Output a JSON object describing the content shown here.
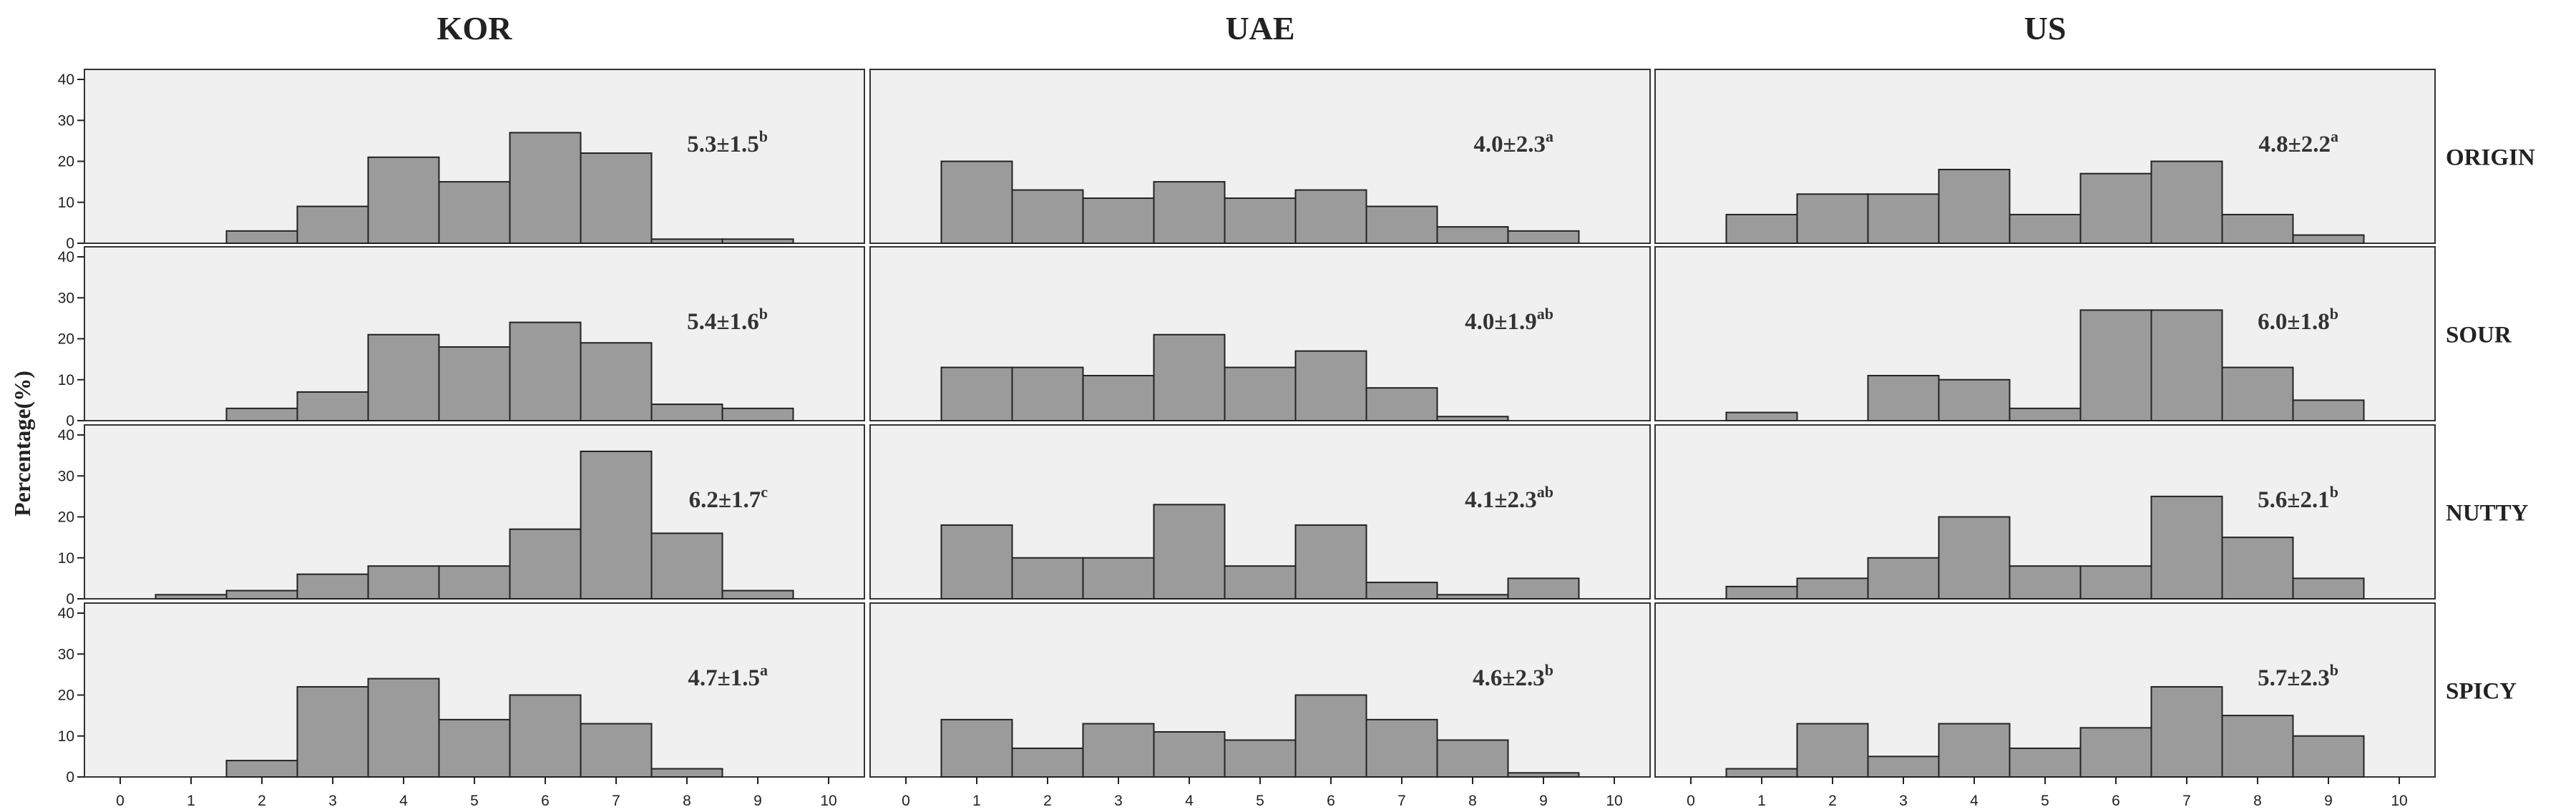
{
  "colors": {
    "bar_fill": "#9b9b9b",
    "bar_stroke": "#222222",
    "panel_bg": "#f0f0f0"
  },
  "chart_data": {
    "type": "bar",
    "subtype": "histogram-grid",
    "ylabel": "Percentage(%)",
    "columns": [
      "KOR",
      "UAE",
      "US"
    ],
    "rows": [
      "ORIGIN",
      "SOUR",
      "NUTTY",
      "SPICY"
    ],
    "ylim": [
      0,
      40
    ],
    "yticks": [
      0,
      10,
      20,
      30,
      40
    ],
    "xlim": [
      0,
      10
    ],
    "xticks": [
      0,
      1,
      2,
      3,
      4,
      5,
      6,
      7,
      8,
      9,
      10
    ],
    "bin_centers": [
      1,
      2,
      3,
      4,
      5,
      6,
      7,
      8,
      9
    ],
    "grid": false,
    "panels": [
      {
        "column": "KOR",
        "row": "ORIGIN",
        "mean_sd": "5.3±1.5",
        "letter": "b",
        "values": [
          0,
          3,
          9,
          21,
          15,
          27,
          22,
          1,
          1
        ]
      },
      {
        "column": "UAE",
        "row": "ORIGIN",
        "mean_sd": "4.0±2.3",
        "letter": "a",
        "values": [
          20,
          13,
          11,
          15,
          11,
          13,
          9,
          4,
          3
        ]
      },
      {
        "column": "US",
        "row": "ORIGIN",
        "mean_sd": "4.8±2.2",
        "letter": "a",
        "values": [
          7,
          12,
          12,
          18,
          7,
          17,
          20,
          7,
          2
        ]
      },
      {
        "column": "KOR",
        "row": "SOUR",
        "mean_sd": "5.4±1.6",
        "letter": "b",
        "values": [
          0,
          3,
          7,
          21,
          18,
          24,
          19,
          4,
          3
        ]
      },
      {
        "column": "UAE",
        "row": "SOUR",
        "mean_sd": "4.0±1.9",
        "letter": "ab",
        "values": [
          13,
          13,
          11,
          21,
          13,
          17,
          8,
          1,
          0
        ]
      },
      {
        "column": "US",
        "row": "SOUR",
        "mean_sd": "6.0±1.8",
        "letter": "b",
        "values": [
          2,
          0,
          11,
          10,
          3,
          27,
          27,
          13,
          5
        ]
      },
      {
        "column": "KOR",
        "row": "NUTTY",
        "mean_sd": "6.2±1.7",
        "letter": "c",
        "values": [
          1,
          2,
          6,
          8,
          8,
          17,
          36,
          16,
          2
        ]
      },
      {
        "column": "UAE",
        "row": "NUTTY",
        "mean_sd": "4.1±2.3",
        "letter": "ab",
        "values": [
          18,
          10,
          10,
          23,
          8,
          18,
          4,
          1,
          5
        ]
      },
      {
        "column": "US",
        "row": "NUTTY",
        "mean_sd": "5.6±2.1",
        "letter": "b",
        "values": [
          3,
          5,
          10,
          20,
          8,
          8,
          25,
          15,
          5
        ]
      },
      {
        "column": "KOR",
        "row": "SPICY",
        "mean_sd": "4.7±1.5",
        "letter": "a",
        "values": [
          0,
          4,
          22,
          24,
          14,
          20,
          13,
          2,
          0
        ]
      },
      {
        "column": "UAE",
        "row": "SPICY",
        "mean_sd": "4.6±2.3",
        "letter": "b",
        "values": [
          14,
          7,
          13,
          11,
          9,
          20,
          14,
          9,
          1
        ]
      },
      {
        "column": "US",
        "row": "SPICY",
        "mean_sd": "5.7±2.3",
        "letter": "b",
        "values": [
          2,
          13,
          5,
          13,
          7,
          12,
          22,
          15,
          10
        ]
      }
    ]
  }
}
